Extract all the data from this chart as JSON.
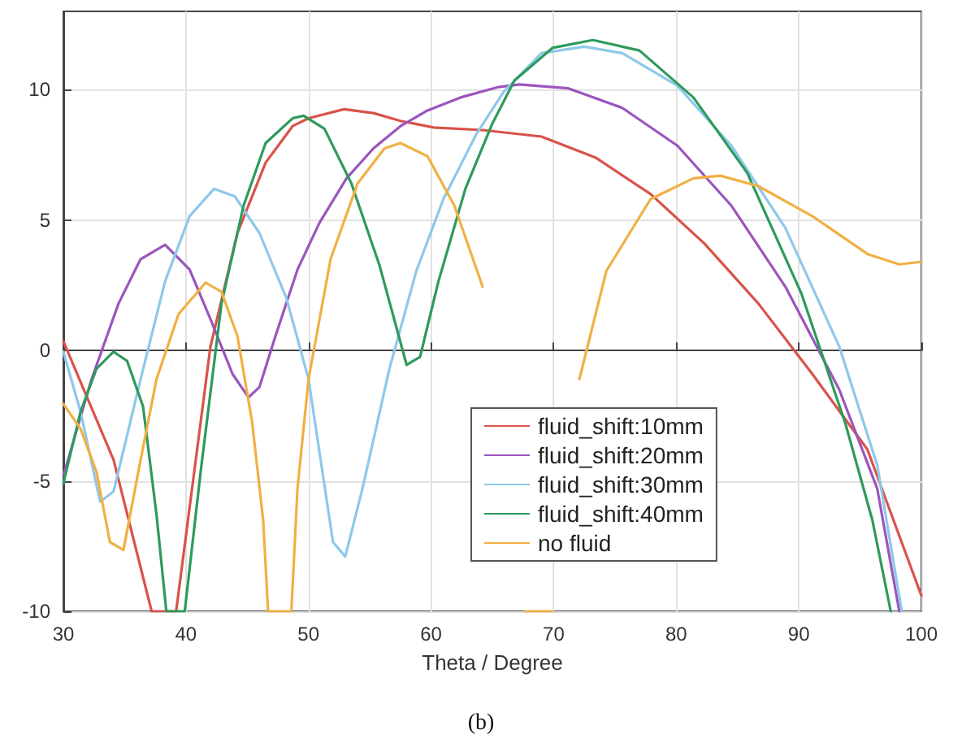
{
  "chart_data": {
    "type": "line",
    "xlabel": "Theta / Degree",
    "annotations": [
      "(b)"
    ],
    "xlim": [
      30,
      100
    ],
    "xticks": [
      30,
      40,
      50,
      60,
      70,
      80,
      90,
      100
    ],
    "ylim": [
      -10,
      13
    ],
    "yticks": [
      -10,
      -5,
      0,
      5,
      10
    ],
    "grid": true,
    "legend": "bottom right",
    "marker": "none",
    "line_style": "solid",
    "series": [
      {
        "name": "fluid_shift:10mm",
        "color": "#d9534a",
        "x": [
          30,
          34.1,
          37.2,
          39.2,
          42,
          44.2,
          46.5,
          48.7,
          50,
          52.9,
          55.3,
          57.5,
          60.2,
          64.2,
          69,
          73.4,
          77.9,
          82.3,
          86.7,
          91.1,
          95.6,
          100
        ],
        "values": [
          0.35,
          -4.2,
          -10,
          -10,
          0.15,
          4.5,
          7.2,
          8.6,
          8.9,
          9.25,
          9.1,
          8.8,
          8.55,
          8.45,
          8.2,
          7.4,
          6.0,
          4.1,
          1.8,
          -0.9,
          -3.8,
          -9.4
        ]
      },
      {
        "name": "fluid_shift:20mm",
        "color": "#9b55bd",
        "x": [
          30,
          32.3,
          34.5,
          36.3,
          38.3,
          40.3,
          42,
          43.8,
          45.1,
          46,
          47.3,
          49.1,
          50.9,
          53.1,
          55.3,
          57.5,
          59.7,
          62.4,
          65.5,
          67.2,
          71.2,
          75.6,
          80.1,
          84.5,
          88.9,
          93.3,
          96.4,
          98.2
        ],
        "values": [
          -4.8,
          -1.1,
          1.8,
          3.5,
          4.05,
          3.1,
          1.2,
          -0.9,
          -1.8,
          -1.4,
          0.55,
          3.1,
          4.9,
          6.6,
          7.75,
          8.6,
          9.2,
          9.7,
          10.1,
          10.2,
          10.05,
          9.3,
          7.85,
          5.55,
          2.45,
          -1.5,
          -5.3,
          -10
        ]
      },
      {
        "name": "fluid_shift:30mm",
        "color": "#8ec8ea",
        "x": [
          30,
          31.4,
          33,
          34.1,
          36.3,
          38.3,
          40.3,
          42.3,
          44,
          46,
          48.2,
          50,
          52,
          53,
          54.4,
          56.6,
          58.8,
          61,
          63.7,
          65.9,
          69,
          72.5,
          75.6,
          80.1,
          84.5,
          88.9,
          93.3,
          96.4,
          98.4
        ],
        "values": [
          -0.05,
          -2.35,
          -5.8,
          -5.4,
          -1.1,
          2.65,
          5.15,
          6.2,
          5.9,
          4.5,
          2.0,
          -1.1,
          -7.35,
          -7.9,
          -5.3,
          -0.7,
          3.05,
          5.8,
          8.3,
          9.9,
          11.4,
          11.65,
          11.4,
          10.15,
          7.85,
          4.7,
          0.15,
          -4.4,
          -10
        ]
      },
      {
        "name": "fluid_shift:40mm",
        "color": "#2e9a5c",
        "x": [
          30,
          31.4,
          32.7,
          34.1,
          35.2,
          36.5,
          37.6,
          38.4,
          39.9,
          41.2,
          42.9,
          44.7,
          46.5,
          48.7,
          49.6,
          51.3,
          53.5,
          55.8,
          58,
          59.1,
          60.6,
          62.8,
          65,
          66.8,
          69.9,
          73.2,
          77,
          81.4,
          85.8,
          90.2,
          93.8,
          96,
          97.5
        ],
        "values": [
          -5.1,
          -2.35,
          -0.7,
          -0.05,
          -0.4,
          -2.15,
          -6.3,
          -10,
          -10,
          -4.65,
          1.8,
          5.55,
          7.95,
          8.9,
          9.0,
          8.5,
          6.4,
          3.25,
          -0.55,
          -0.25,
          2.65,
          6.2,
          8.7,
          10.35,
          11.6,
          11.9,
          11.5,
          9.7,
          6.8,
          2.2,
          -2.8,
          -6.5,
          -10
        ]
      },
      {
        "name": "no fluid",
        "color": "#f0b044",
        "x": [
          30,
          31.4,
          32.7,
          33.8,
          34.9,
          36.3,
          37.6,
          39.4,
          41.6,
          42.9,
          44.2,
          45.4,
          46.3,
          46.7,
          48.6,
          49.1,
          50,
          51.8,
          54,
          56.2,
          57.5,
          59.7,
          61.9,
          64.2,
          65.9,
          67,
          67.7,
          69.9,
          70.8,
          72.1,
          74.3,
          77.9,
          81.4,
          83.6,
          86.7,
          91.1,
          95.6,
          98.2,
          100
        ],
        "values": [
          -2.05,
          -3.0,
          -4.65,
          -7.35,
          -7.65,
          -4.2,
          -1.1,
          1.4,
          2.6,
          2.25,
          0.55,
          -2.75,
          -6.5,
          -10,
          -10,
          -5.3,
          -1.1,
          3.5,
          6.4,
          7.75,
          7.95,
          7.45,
          5.55,
          2.45,
          null,
          null,
          -10,
          -10,
          null,
          -1.1,
          3.05,
          5.8,
          6.6,
          6.7,
          6.3,
          5.15,
          3.7,
          3.3,
          3.4
        ]
      }
    ]
  }
}
